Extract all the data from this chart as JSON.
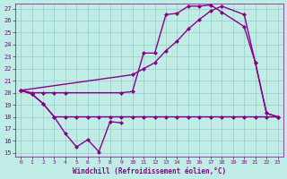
{
  "xlabel": "Windchill (Refroidissement éolien,°C)",
  "bg_color": "#c0ece6",
  "grid_color": "#99cccc",
  "line_color": "#880088",
  "line_width": 1.0,
  "marker": "D",
  "marker_size": 2.5,
  "ylim_min": 15,
  "ylim_max": 27,
  "yticks": [
    15,
    16,
    17,
    18,
    19,
    20,
    21,
    22,
    23,
    24,
    25,
    26,
    27
  ],
  "xticks": [
    0,
    1,
    2,
    3,
    4,
    5,
    6,
    7,
    8,
    9,
    10,
    11,
    12,
    13,
    14,
    15,
    16,
    17,
    18,
    19,
    20,
    21,
    22,
    23
  ],
  "s1_x": [
    0,
    1,
    2,
    3,
    4,
    5,
    6,
    7,
    8,
    9
  ],
  "s1_y": [
    20.2,
    19.9,
    19.1,
    18.0,
    16.6,
    15.5,
    16.1,
    15.1,
    17.6,
    17.5
  ],
  "s2_x": [
    0,
    1,
    2,
    3,
    4,
    5,
    6,
    7,
    8,
    9,
    10,
    11,
    12,
    13,
    14,
    15,
    16,
    17,
    18,
    19,
    20,
    21,
    22,
    23
  ],
  "s2_y": [
    20.2,
    19.9,
    19.1,
    18.0,
    18.0,
    18.0,
    18.0,
    18.0,
    18.0,
    18.0,
    18.0,
    18.0,
    18.0,
    18.0,
    18.0,
    18.0,
    18.0,
    18.0,
    18.0,
    18.0,
    18.0,
    18.0,
    18.0,
    18.0
  ],
  "s3_x": [
    0,
    1,
    2,
    3,
    4,
    9,
    10,
    11,
    12,
    13,
    14,
    15,
    16,
    17,
    18,
    20,
    21,
    22,
    23
  ],
  "s3_y": [
    20.2,
    20.0,
    20.0,
    20.0,
    20.0,
    20.0,
    20.1,
    23.3,
    23.3,
    26.5,
    26.6,
    27.2,
    27.2,
    27.3,
    26.7,
    25.5,
    22.5,
    18.3,
    18.0
  ],
  "s4_x": [
    0,
    10,
    11,
    12,
    13,
    14,
    15,
    16,
    17,
    18,
    20,
    21,
    22,
    23
  ],
  "s4_y": [
    20.2,
    21.5,
    22.0,
    22.5,
    23.5,
    24.3,
    25.3,
    26.1,
    26.8,
    27.2,
    26.5,
    22.5,
    18.3,
    18.0
  ]
}
